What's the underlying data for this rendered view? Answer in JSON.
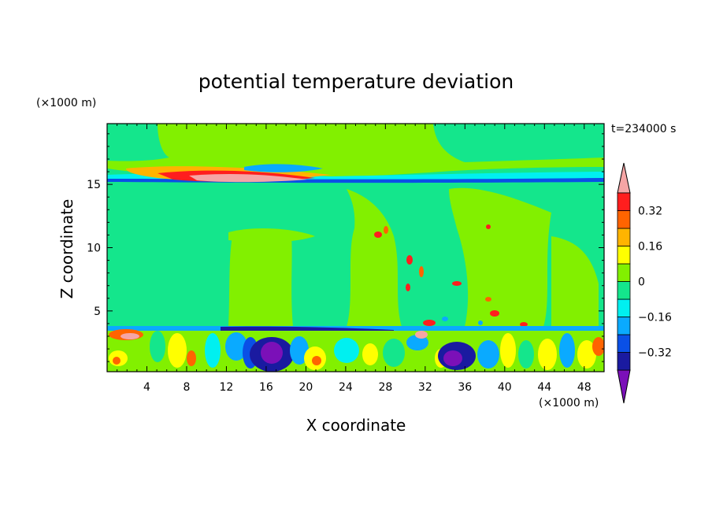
{
  "chart_data": {
    "type": "heatmap",
    "title": "potential temperature deviation",
    "xlabel": "X coordinate",
    "ylabel": "Z coordinate",
    "x_unit": "(×1000 m)",
    "y_unit": "(×1000 m)",
    "time_label": "t=234000 s",
    "xlim": [
      0,
      50
    ],
    "ylim": [
      0.2,
      19.8
    ],
    "x_ticks": [
      "4",
      "8",
      "12",
      "16",
      "20",
      "24",
      "28",
      "32",
      "36",
      "40",
      "44",
      "48"
    ],
    "y_ticks": [
      "5",
      "10",
      "15"
    ],
    "colorbar": {
      "levels": [
        -0.4,
        -0.32,
        -0.24,
        -0.16,
        -0.08,
        0,
        0.08,
        0.16,
        0.24,
        0.32,
        0.4
      ],
      "labels": [
        "0.32",
        "0.16",
        "0",
        "−0.16",
        "−0.32"
      ],
      "label_values": [
        0.32,
        0.16,
        0,
        -0.16,
        -0.32
      ],
      "colors": [
        "#7b10b8",
        "#1a1aa0",
        "#0a50e6",
        "#0aaaff",
        "#00f0f0",
        "#14e68c",
        "#82f000",
        "#ffff00",
        "#ffb400",
        "#ff6400",
        "#ff1e1e",
        "#f5a5a5"
      ]
    }
  }
}
